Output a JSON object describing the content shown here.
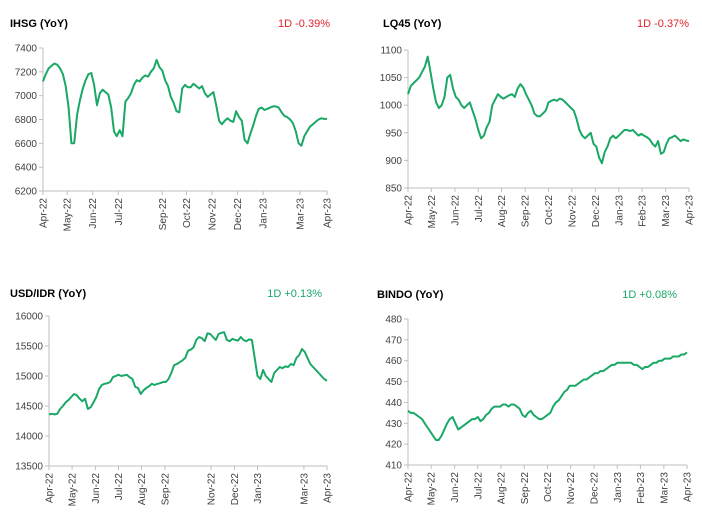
{
  "colors": {
    "line": "#1aa866",
    "up": "#1aa866",
    "down": "#e3242b",
    "axis": "#bfbfbf",
    "text": "#404040"
  },
  "chart_data": [
    {
      "type": "line",
      "title": "IHSG (YoY)",
      "change_label": "1D -0.39%",
      "direction": "down",
      "x_ticks": [
        "Apr-22",
        "May-22",
        "Jun-22",
        "Jul-22",
        "Sep-22",
        "Oct-22",
        "Nov-22",
        "Dec-22",
        "Jan-23",
        "Mar-23",
        "Apr-23"
      ],
      "x_tick_pos": [
        0,
        0.085,
        0.175,
        0.265,
        0.42,
        0.505,
        0.595,
        0.685,
        0.775,
        0.905,
        1.0
      ],
      "y_ticks": [
        6200,
        6400,
        6600,
        6800,
        7000,
        7200,
        7400
      ],
      "ylim": [
        6200,
        7400
      ],
      "grid": false,
      "x": [
        0,
        0.01,
        0.02,
        0.03,
        0.04,
        0.05,
        0.06,
        0.07,
        0.08,
        0.09,
        0.1,
        0.11,
        0.12,
        0.13,
        0.14,
        0.15,
        0.16,
        0.17,
        0.18,
        0.19,
        0.2,
        0.21,
        0.22,
        0.23,
        0.24,
        0.25,
        0.26,
        0.27,
        0.28,
        0.29,
        0.3,
        0.31,
        0.32,
        0.33,
        0.34,
        0.35,
        0.36,
        0.37,
        0.38,
        0.39,
        0.4,
        0.41,
        0.42,
        0.43,
        0.44,
        0.45,
        0.46,
        0.47,
        0.48,
        0.49,
        0.5,
        0.51,
        0.52,
        0.53,
        0.54,
        0.55,
        0.56,
        0.57,
        0.58,
        0.59,
        0.6,
        0.61,
        0.62,
        0.63,
        0.64,
        0.65,
        0.66,
        0.67,
        0.68,
        0.69,
        0.7,
        0.71,
        0.72,
        0.73,
        0.74,
        0.75,
        0.76,
        0.77,
        0.78,
        0.79,
        0.8,
        0.81,
        0.82,
        0.83,
        0.84,
        0.85,
        0.86,
        0.87,
        0.88,
        0.89,
        0.9,
        0.91,
        0.92,
        0.93,
        0.94,
        0.95,
        0.96,
        0.97,
        0.98,
        0.99,
        1.0
      ],
      "values": [
        7120,
        7180,
        7230,
        7250,
        7270,
        7260,
        7230,
        7180,
        7080,
        6900,
        6600,
        6600,
        6840,
        6960,
        7060,
        7130,
        7180,
        7190,
        7090,
        6920,
        7020,
        7050,
        7030,
        7010,
        6900,
        6700,
        6660,
        6710,
        6660,
        6950,
        6980,
        7020,
        7090,
        7130,
        7120,
        7150,
        7170,
        7160,
        7200,
        7230,
        7300,
        7240,
        7210,
        7130,
        7080,
        6990,
        6940,
        6870,
        6860,
        7060,
        7090,
        7070,
        7070,
        7100,
        7080,
        7060,
        7080,
        7020,
        6990,
        7010,
        7030,
        6920,
        6790,
        6760,
        6790,
        6810,
        6790,
        6780,
        6870,
        6820,
        6790,
        6630,
        6600,
        6680,
        6750,
        6830,
        6890,
        6900,
        6880,
        6890,
        6900,
        6910,
        6910,
        6900,
        6860,
        6830,
        6820,
        6800,
        6770,
        6700,
        6600,
        6580,
        6660,
        6700,
        6740,
        6760,
        6780,
        6800,
        6810,
        6805,
        6805
      ]
    },
    {
      "type": "line",
      "title": "LQ45 (YoY)",
      "change_label": "1D -0.37%",
      "direction": "down",
      "x_ticks": [
        "Apr-22",
        "May-22",
        "Jun-22",
        "Jul-22",
        "Aug-22",
        "Sep-22",
        "Oct-22",
        "Nov-22",
        "Dec-22",
        "Jan-23",
        "Feb-23",
        "Mar-23",
        "Apr-23"
      ],
      "x_tick_pos": [
        0,
        0.083,
        0.167,
        0.25,
        0.333,
        0.417,
        0.5,
        0.583,
        0.667,
        0.75,
        0.833,
        0.917,
        1.0
      ],
      "y_ticks": [
        850,
        900,
        950,
        1000,
        1050,
        1100
      ],
      "ylim": [
        850,
        1100
      ],
      "grid": false,
      "x": [
        0,
        0.01,
        0.02,
        0.03,
        0.04,
        0.05,
        0.06,
        0.07,
        0.08,
        0.09,
        0.1,
        0.11,
        0.12,
        0.13,
        0.14,
        0.15,
        0.16,
        0.17,
        0.18,
        0.19,
        0.2,
        0.21,
        0.22,
        0.23,
        0.24,
        0.25,
        0.26,
        0.27,
        0.28,
        0.29,
        0.3,
        0.31,
        0.32,
        0.33,
        0.34,
        0.35,
        0.36,
        0.37,
        0.38,
        0.39,
        0.4,
        0.41,
        0.42,
        0.43,
        0.44,
        0.45,
        0.46,
        0.47,
        0.48,
        0.49,
        0.5,
        0.51,
        0.52,
        0.53,
        0.54,
        0.55,
        0.56,
        0.57,
        0.58,
        0.59,
        0.6,
        0.61,
        0.62,
        0.63,
        0.64,
        0.65,
        0.66,
        0.67,
        0.68,
        0.69,
        0.7,
        0.71,
        0.72,
        0.73,
        0.74,
        0.75,
        0.76,
        0.77,
        0.78,
        0.79,
        0.8,
        0.81,
        0.82,
        0.83,
        0.84,
        0.85,
        0.86,
        0.87,
        0.88,
        0.89,
        0.9,
        0.91,
        0.92,
        0.93,
        0.94,
        0.95,
        0.96,
        0.97,
        0.98,
        0.99,
        1.0
      ],
      "values": [
        1020,
        1035,
        1040,
        1045,
        1050,
        1060,
        1070,
        1088,
        1060,
        1030,
        1005,
        995,
        1000,
        1015,
        1050,
        1055,
        1030,
        1015,
        1010,
        1000,
        995,
        1000,
        1005,
        990,
        975,
        955,
        940,
        945,
        960,
        970,
        1000,
        1010,
        1020,
        1015,
        1012,
        1015,
        1018,
        1020,
        1015,
        1030,
        1038,
        1032,
        1020,
        1010,
        1000,
        985,
        980,
        980,
        985,
        990,
        1005,
        1008,
        1010,
        1008,
        1012,
        1010,
        1005,
        1000,
        995,
        990,
        975,
        955,
        945,
        940,
        945,
        950,
        930,
        925,
        905,
        895,
        915,
        925,
        940,
        945,
        940,
        945,
        950,
        955,
        955,
        953,
        955,
        950,
        945,
        948,
        945,
        942,
        938,
        930,
        925,
        935,
        912,
        915,
        930,
        940,
        942,
        945,
        940,
        935,
        938,
        936,
        935
      ]
    },
    {
      "type": "line",
      "title": "USD/IDR (YoY)",
      "change_label": "1D +0.13%",
      "direction": "up",
      "x_ticks": [
        "Apr-22",
        "May-22",
        "Jun-22",
        "Jul-22",
        "Aug-22",
        "Sep-22",
        "Nov-22",
        "Dec-22",
        "Jan-23",
        "Mar-23",
        "Apr-23"
      ],
      "x_tick_pos": [
        0,
        0.083,
        0.167,
        0.25,
        0.333,
        0.417,
        0.583,
        0.667,
        0.75,
        0.917,
        1.0
      ],
      "y_ticks": [
        13500,
        14000,
        14500,
        15000,
        15500,
        16000
      ],
      "ylim": [
        13500,
        16000
      ],
      "grid": false,
      "x": [
        0,
        0.01,
        0.02,
        0.03,
        0.04,
        0.05,
        0.06,
        0.07,
        0.08,
        0.09,
        0.1,
        0.11,
        0.12,
        0.13,
        0.14,
        0.15,
        0.16,
        0.17,
        0.18,
        0.19,
        0.2,
        0.21,
        0.22,
        0.23,
        0.24,
        0.25,
        0.26,
        0.27,
        0.28,
        0.29,
        0.3,
        0.31,
        0.32,
        0.33,
        0.34,
        0.35,
        0.36,
        0.37,
        0.38,
        0.39,
        0.4,
        0.41,
        0.42,
        0.43,
        0.44,
        0.45,
        0.46,
        0.47,
        0.48,
        0.49,
        0.5,
        0.51,
        0.52,
        0.53,
        0.54,
        0.55,
        0.56,
        0.57,
        0.58,
        0.59,
        0.6,
        0.61,
        0.62,
        0.63,
        0.64,
        0.65,
        0.66,
        0.67,
        0.68,
        0.69,
        0.7,
        0.71,
        0.72,
        0.73,
        0.74,
        0.75,
        0.76,
        0.77,
        0.78,
        0.79,
        0.8,
        0.81,
        0.82,
        0.83,
        0.84,
        0.85,
        0.86,
        0.87,
        0.88,
        0.89,
        0.9,
        0.91,
        0.92,
        0.93,
        0.94,
        0.95,
        0.96,
        0.97,
        0.98,
        0.99,
        1.0
      ],
      "values": [
        14360,
        14370,
        14360,
        14370,
        14450,
        14500,
        14560,
        14600,
        14650,
        14700,
        14680,
        14620,
        14580,
        14620,
        14450,
        14480,
        14560,
        14650,
        14780,
        14850,
        14870,
        14880,
        14900,
        14980,
        15000,
        15020,
        15000,
        15010,
        15020,
        14980,
        14950,
        14820,
        14800,
        14700,
        14760,
        14800,
        14830,
        14870,
        14850,
        14870,
        14880,
        14900,
        14900,
        14950,
        15050,
        15180,
        15200,
        15230,
        15260,
        15300,
        15420,
        15440,
        15480,
        15600,
        15650,
        15630,
        15580,
        15710,
        15700,
        15650,
        15600,
        15700,
        15720,
        15730,
        15600,
        15580,
        15620,
        15600,
        15590,
        15650,
        15600,
        15580,
        15610,
        15600,
        15300,
        15000,
        14950,
        15100,
        15000,
        14950,
        14900,
        15050,
        15100,
        15150,
        15130,
        15160,
        15150,
        15200,
        15180,
        15300,
        15350,
        15450,
        15400,
        15300,
        15200,
        15150,
        15100,
        15050,
        15000,
        14950,
        14920
      ]
    },
    {
      "type": "line",
      "title": "BINDO (YoY)",
      "change_label": "1D +0.08%",
      "direction": "up",
      "x_ticks": [
        "Apr-22",
        "May-22",
        "Jun-22",
        "Jul-22",
        "Aug-22",
        "Sep-22",
        "Oct-22",
        "Nov-22",
        "Dec-22",
        "Jan-23",
        "Feb-23",
        "Mar-23",
        "Apr-23"
      ],
      "x_tick_pos": [
        0,
        0.083,
        0.167,
        0.25,
        0.333,
        0.417,
        0.5,
        0.583,
        0.667,
        0.75,
        0.833,
        0.917,
        1.0
      ],
      "y_ticks": [
        410,
        420,
        430,
        440,
        450,
        460,
        470,
        480
      ],
      "ylim": [
        410,
        480
      ],
      "grid": false,
      "x": [
        0,
        0.01,
        0.02,
        0.03,
        0.04,
        0.05,
        0.06,
        0.07,
        0.08,
        0.09,
        0.1,
        0.11,
        0.12,
        0.13,
        0.14,
        0.15,
        0.16,
        0.17,
        0.18,
        0.19,
        0.2,
        0.21,
        0.22,
        0.23,
        0.24,
        0.25,
        0.26,
        0.27,
        0.28,
        0.29,
        0.3,
        0.31,
        0.32,
        0.33,
        0.34,
        0.35,
        0.36,
        0.37,
        0.38,
        0.39,
        0.4,
        0.41,
        0.42,
        0.43,
        0.44,
        0.45,
        0.46,
        0.47,
        0.48,
        0.49,
        0.5,
        0.51,
        0.52,
        0.53,
        0.54,
        0.55,
        0.56,
        0.57,
        0.58,
        0.59,
        0.6,
        0.61,
        0.62,
        0.63,
        0.64,
        0.65,
        0.66,
        0.67,
        0.68,
        0.69,
        0.7,
        0.71,
        0.72,
        0.73,
        0.74,
        0.75,
        0.76,
        0.77,
        0.78,
        0.79,
        0.8,
        0.81,
        0.82,
        0.83,
        0.84,
        0.85,
        0.86,
        0.87,
        0.88,
        0.89,
        0.9,
        0.91,
        0.92,
        0.93,
        0.94,
        0.95,
        0.96,
        0.97,
        0.98,
        0.99,
        1.0
      ],
      "values": [
        436,
        435,
        435,
        434,
        433,
        432,
        430,
        428,
        426,
        424,
        422,
        422,
        424,
        427,
        430,
        432,
        433,
        430,
        427,
        428,
        429,
        430,
        431,
        432,
        432,
        433,
        431,
        432,
        434,
        435,
        437,
        438,
        438,
        438,
        439,
        439,
        438,
        439,
        439,
        438,
        437,
        434,
        433,
        435,
        436,
        434,
        433,
        432,
        432,
        433,
        434,
        435,
        438,
        440,
        441,
        443,
        445,
        446,
        448,
        448,
        448,
        449,
        450,
        451,
        451,
        452,
        453,
        454,
        454,
        455,
        455,
        456,
        457,
        458,
        458,
        459,
        459,
        459,
        459,
        459,
        459,
        458,
        458,
        457,
        456,
        457,
        457,
        458,
        459,
        459,
        460,
        460,
        461,
        461,
        461,
        462,
        462,
        462,
        463,
        463,
        464
      ]
    }
  ]
}
